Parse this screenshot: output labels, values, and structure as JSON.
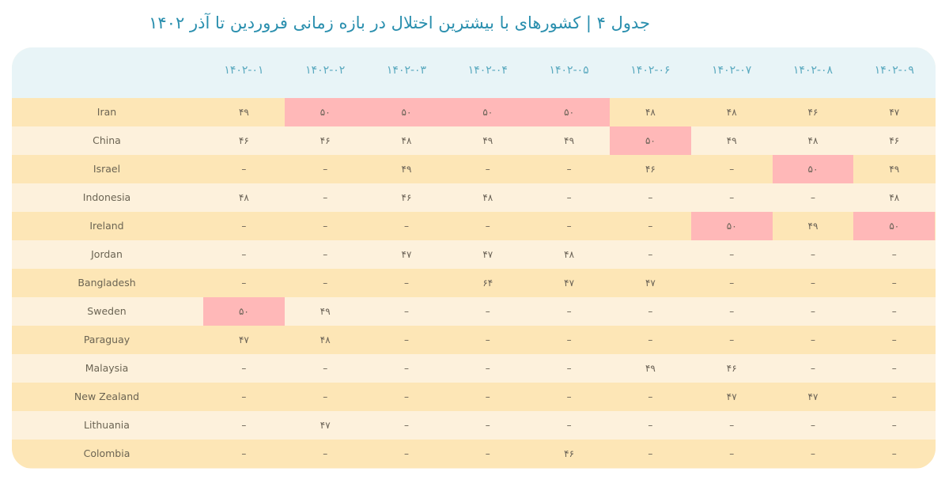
{
  "title": "جدول ۴ | کشورهای با بیشترین اختلال در بازه زمانی فروردین تا آذر ۱۴۰۲",
  "colors": {
    "title": "#2a8fae",
    "header_bg": "#e8f4f7",
    "header_text": "#5aa9bf",
    "row_odd": "#fde6b6",
    "row_even": "#fdf1dc",
    "highlight": "#ffb8b8"
  },
  "columns": [
    "۱۴۰۲-۰۱",
    "۱۴۰۲-۰۲",
    "۱۴۰۲-۰۳",
    "۱۴۰۲-۰۴",
    "۱۴۰۲-۰۵",
    "۱۴۰۲-۰۶",
    "۱۴۰۲-۰۷",
    "۱۴۰۲-۰۸",
    "۱۴۰۲-۰۹"
  ],
  "rows": [
    {
      "country": "Iran",
      "values": [
        "۴۹",
        "۵۰",
        "۵۰",
        "۵۰",
        "۵۰",
        "۴۸",
        "۴۸",
        "۴۶",
        "۴۷"
      ],
      "highlight": [
        1,
        2,
        3,
        4
      ]
    },
    {
      "country": "China",
      "values": [
        "۴۶",
        "۴۶",
        "۴۸",
        "۴۹",
        "۴۹",
        "۵۰",
        "۴۹",
        "۴۸",
        "۴۶"
      ],
      "highlight": [
        5
      ]
    },
    {
      "country": "Israel",
      "values": [
        "–",
        "–",
        "۴۹",
        "–",
        "–",
        "۴۶",
        "–",
        "۵۰",
        "۴۹"
      ],
      "highlight": [
        7
      ]
    },
    {
      "country": "Indonesia",
      "values": [
        "۴۸",
        "–",
        "۴۶",
        "۴۸",
        "–",
        "–",
        "–",
        "–",
        "۴۸"
      ],
      "highlight": []
    },
    {
      "country": "Ireland",
      "values": [
        "–",
        "–",
        "–",
        "–",
        "–",
        "–",
        "۵۰",
        "۴۹",
        "۵۰"
      ],
      "highlight": [
        6,
        8
      ]
    },
    {
      "country": "Jordan",
      "values": [
        "–",
        "–",
        "۴۷",
        "۴۷",
        "۴۸",
        "–",
        "–",
        "–",
        "–"
      ],
      "highlight": []
    },
    {
      "country": "Bangladesh",
      "values": [
        "–",
        "–",
        "–",
        "۶۴",
        "۴۷",
        "۴۷",
        "–",
        "–",
        "–"
      ],
      "highlight": []
    },
    {
      "country": "Sweden",
      "values": [
        "۵۰",
        "۴۹",
        "–",
        "–",
        "–",
        "–",
        "–",
        "–",
        "–"
      ],
      "highlight": [
        0
      ]
    },
    {
      "country": "Paraguay",
      "values": [
        "۴۷",
        "۴۸",
        "–",
        "–",
        "–",
        "–",
        "–",
        "–",
        "–"
      ],
      "highlight": []
    },
    {
      "country": "Malaysia",
      "values": [
        "–",
        "–",
        "–",
        "–",
        "–",
        "۴۹",
        "۴۶",
        "–",
        "–"
      ],
      "highlight": []
    },
    {
      "country": "New Zealand",
      "values": [
        "–",
        "–",
        "–",
        "–",
        "–",
        "–",
        "۴۷",
        "۴۷",
        "–"
      ],
      "highlight": []
    },
    {
      "country": "Lithuania",
      "values": [
        "–",
        "۴۷",
        "–",
        "–",
        "–",
        "–",
        "–",
        "–",
        "–"
      ],
      "highlight": []
    },
    {
      "country": "Colombia",
      "values": [
        "–",
        "–",
        "–",
        "–",
        "۴۶",
        "–",
        "–",
        "–",
        "–"
      ],
      "highlight": []
    }
  ],
  "chart_data": {
    "type": "table",
    "title": "جدول ۴ | کشورهای با بیشترین اختلال در بازه زمانی فروردین تا آذر ۱۴۰۲",
    "columns": [
      "1402-01",
      "1402-02",
      "1402-03",
      "1402-04",
      "1402-05",
      "1402-06",
      "1402-07",
      "1402-08",
      "1402-09"
    ],
    "rows": [
      {
        "name": "Iran",
        "values": [
          49,
          50,
          50,
          50,
          50,
          48,
          48,
          46,
          47
        ]
      },
      {
        "name": "China",
        "values": [
          46,
          46,
          48,
          49,
          49,
          50,
          49,
          48,
          46
        ]
      },
      {
        "name": "Israel",
        "values": [
          null,
          null,
          49,
          null,
          null,
          46,
          null,
          50,
          49
        ]
      },
      {
        "name": "Indonesia",
        "values": [
          48,
          null,
          46,
          48,
          null,
          null,
          null,
          null,
          48
        ]
      },
      {
        "name": "Ireland",
        "values": [
          null,
          null,
          null,
          null,
          null,
          null,
          50,
          49,
          50
        ]
      },
      {
        "name": "Jordan",
        "values": [
          null,
          null,
          47,
          47,
          48,
          null,
          null,
          null,
          null
        ]
      },
      {
        "name": "Bangladesh",
        "values": [
          null,
          null,
          null,
          64,
          47,
          47,
          null,
          null,
          null
        ]
      },
      {
        "name": "Sweden",
        "values": [
          50,
          49,
          null,
          null,
          null,
          null,
          null,
          null,
          null
        ]
      },
      {
        "name": "Paraguay",
        "values": [
          47,
          48,
          null,
          null,
          null,
          null,
          null,
          null,
          null
        ]
      },
      {
        "name": "Malaysia",
        "values": [
          null,
          null,
          null,
          null,
          null,
          49,
          46,
          null,
          null
        ]
      },
      {
        "name": "New Zealand",
        "values": [
          null,
          null,
          null,
          null,
          null,
          null,
          47,
          47,
          null
        ]
      },
      {
        "name": "Lithuania",
        "values": [
          null,
          47,
          null,
          null,
          null,
          null,
          null,
          null,
          null
        ]
      },
      {
        "name": "Colombia",
        "values": [
          null,
          null,
          null,
          null,
          46,
          null,
          null,
          null,
          null
        ]
      }
    ],
    "highlighted_value": 50,
    "grid": false
  }
}
